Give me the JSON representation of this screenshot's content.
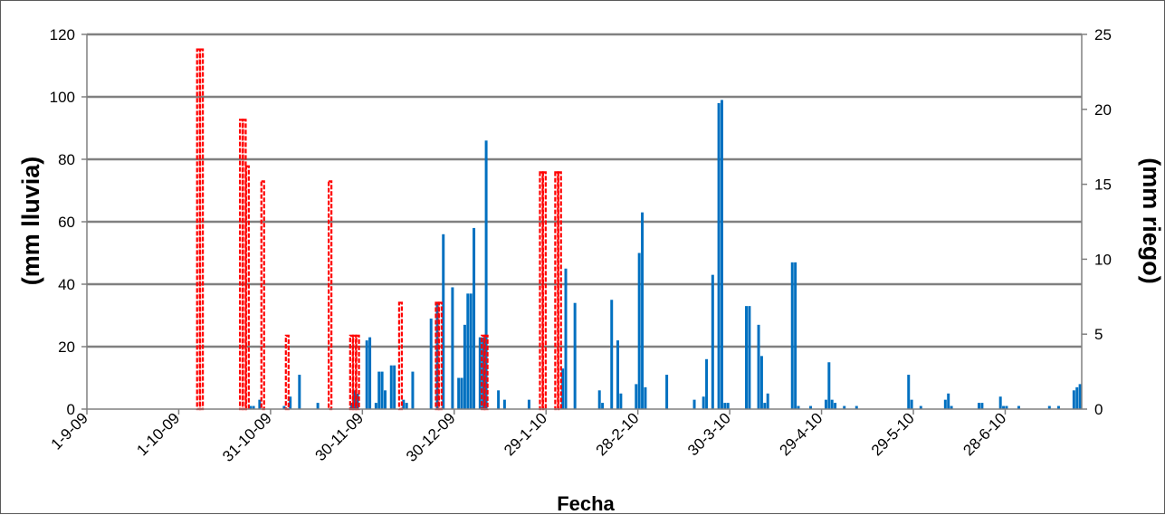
{
  "chart_data": {
    "type": "bar",
    "title": "",
    "xlabel": "Fecha",
    "ylabel_left": "(mm lluvia)",
    "ylabel_right": "(mm riego)",
    "x_ticks": [
      "1-9-09",
      "1-10-09",
      "31-10-09",
      "30-11-09",
      "30-12-09",
      "29-1-10",
      "28-2-10",
      "30-3-10",
      "29-4-10",
      "29-5-10",
      "28-6-10"
    ],
    "y_left": {
      "min": 0,
      "max": 120,
      "ticks": [
        0,
        20,
        40,
        60,
        80,
        100,
        120
      ]
    },
    "y_right": {
      "min": 0,
      "max": 25,
      "ticks": [
        0,
        5,
        10,
        15,
        20,
        25
      ]
    },
    "grid": true,
    "colors": {
      "lluvia": "#0070c0",
      "riego": "#ff0000",
      "grid": "#808080"
    },
    "series": [
      {
        "axis": "left",
        "style": "solid",
        "points": [
          [
            "2009-10-24",
            1
          ],
          [
            "2009-10-25",
            1
          ],
          [
            "2009-10-27",
            3
          ],
          [
            "2009-11-04",
            1
          ],
          [
            "2009-11-06",
            4
          ],
          [
            "2009-11-09",
            11
          ],
          [
            "2009-11-15",
            2
          ],
          [
            "2009-11-26",
            2
          ],
          [
            "2009-11-27",
            6
          ],
          [
            "2009-11-28",
            5
          ],
          [
            "2009-12-01",
            22
          ],
          [
            "2009-12-02",
            23
          ],
          [
            "2009-12-04",
            2
          ],
          [
            "2009-12-05",
            12
          ],
          [
            "2009-12-06",
            12
          ],
          [
            "2009-12-07",
            6
          ],
          [
            "2009-12-09",
            14
          ],
          [
            "2009-12-10",
            14
          ],
          [
            "2009-12-13",
            3
          ],
          [
            "2009-12-14",
            2
          ],
          [
            "2009-12-16",
            12
          ],
          [
            "2009-12-22",
            29
          ],
          [
            "2009-12-24",
            34
          ],
          [
            "2009-12-26",
            56
          ],
          [
            "2009-12-29",
            39
          ],
          [
            "2009-12-31",
            10
          ],
          [
            "2010-01-01",
            10
          ],
          [
            "2010-01-02",
            27
          ],
          [
            "2010-01-03",
            37
          ],
          [
            "2010-01-04",
            37
          ],
          [
            "2010-01-05",
            58
          ],
          [
            "2010-01-07",
            23
          ],
          [
            "2010-01-08",
            23
          ],
          [
            "2010-01-09",
            86
          ],
          [
            "2010-01-13",
            6
          ],
          [
            "2010-01-15",
            3
          ],
          [
            "2010-01-23",
            3
          ],
          [
            "2010-02-03",
            13
          ],
          [
            "2010-02-04",
            45
          ],
          [
            "2010-02-07",
            34
          ],
          [
            "2010-02-15",
            6
          ],
          [
            "2010-02-16",
            2
          ],
          [
            "2010-02-19",
            35
          ],
          [
            "2010-02-21",
            22
          ],
          [
            "2010-02-22",
            5
          ],
          [
            "2010-02-27",
            8
          ],
          [
            "2010-02-28",
            50
          ],
          [
            "2010-03-01",
            63
          ],
          [
            "2010-03-02",
            7
          ],
          [
            "2010-03-09",
            11
          ],
          [
            "2010-03-18",
            3
          ],
          [
            "2010-03-21",
            4
          ],
          [
            "2010-03-22",
            16
          ],
          [
            "2010-03-24",
            43
          ],
          [
            "2010-03-26",
            98
          ],
          [
            "2010-03-27",
            99
          ],
          [
            "2010-03-28",
            2
          ],
          [
            "2010-03-29",
            2
          ],
          [
            "2010-04-04",
            33
          ],
          [
            "2010-04-05",
            33
          ],
          [
            "2010-04-08",
            27
          ],
          [
            "2010-04-09",
            17
          ],
          [
            "2010-04-10",
            2
          ],
          [
            "2010-04-11",
            5
          ],
          [
            "2010-04-19",
            47
          ],
          [
            "2010-04-20",
            47
          ],
          [
            "2010-04-21",
            1
          ],
          [
            "2010-04-25",
            1
          ],
          [
            "2010-04-30",
            3
          ],
          [
            "2010-05-01",
            15
          ],
          [
            "2010-05-02",
            3
          ],
          [
            "2010-05-03",
            2
          ],
          [
            "2010-05-06",
            1
          ],
          [
            "2010-05-10",
            1
          ],
          [
            "2010-05-27",
            11
          ],
          [
            "2010-05-28",
            3
          ],
          [
            "2010-05-31",
            1
          ],
          [
            "2010-06-08",
            3
          ],
          [
            "2010-06-09",
            5
          ],
          [
            "2010-06-10",
            1
          ],
          [
            "2010-06-19",
            2
          ],
          [
            "2010-06-20",
            2
          ],
          [
            "2010-06-26",
            4
          ],
          [
            "2010-06-27",
            1
          ],
          [
            "2010-06-28",
            1
          ],
          [
            "2010-07-02",
            1
          ],
          [
            "2010-07-12",
            1
          ],
          [
            "2010-07-15",
            1
          ],
          [
            "2010-07-20",
            6
          ],
          [
            "2010-07-21",
            7
          ],
          [
            "2010-07-22",
            8
          ]
        ]
      },
      {
        "axis": "right",
        "style": "dashed",
        "points": [
          [
            "2009-10-07",
            24
          ],
          [
            "2009-10-08",
            24
          ],
          [
            "2009-10-21",
            19.3
          ],
          [
            "2009-10-22",
            19.3
          ],
          [
            "2009-10-23",
            16.2
          ],
          [
            "2009-10-28",
            15.2
          ],
          [
            "2009-11-05",
            4.9
          ],
          [
            "2009-11-19",
            15.2
          ],
          [
            "2009-11-26",
            4.9
          ],
          [
            "2009-11-27",
            4.9
          ],
          [
            "2009-11-28",
            4.9
          ],
          [
            "2009-12-12",
            7.1
          ],
          [
            "2009-12-24",
            7.1
          ],
          [
            "2009-12-25",
            7.1
          ],
          [
            "2010-01-08",
            4.9
          ],
          [
            "2010-01-09",
            4.9
          ],
          [
            "2010-01-27",
            15.8
          ],
          [
            "2010-01-28",
            15.8
          ],
          [
            "2010-02-01",
            15.8
          ],
          [
            "2010-02-02",
            15.8
          ]
        ]
      }
    ]
  }
}
